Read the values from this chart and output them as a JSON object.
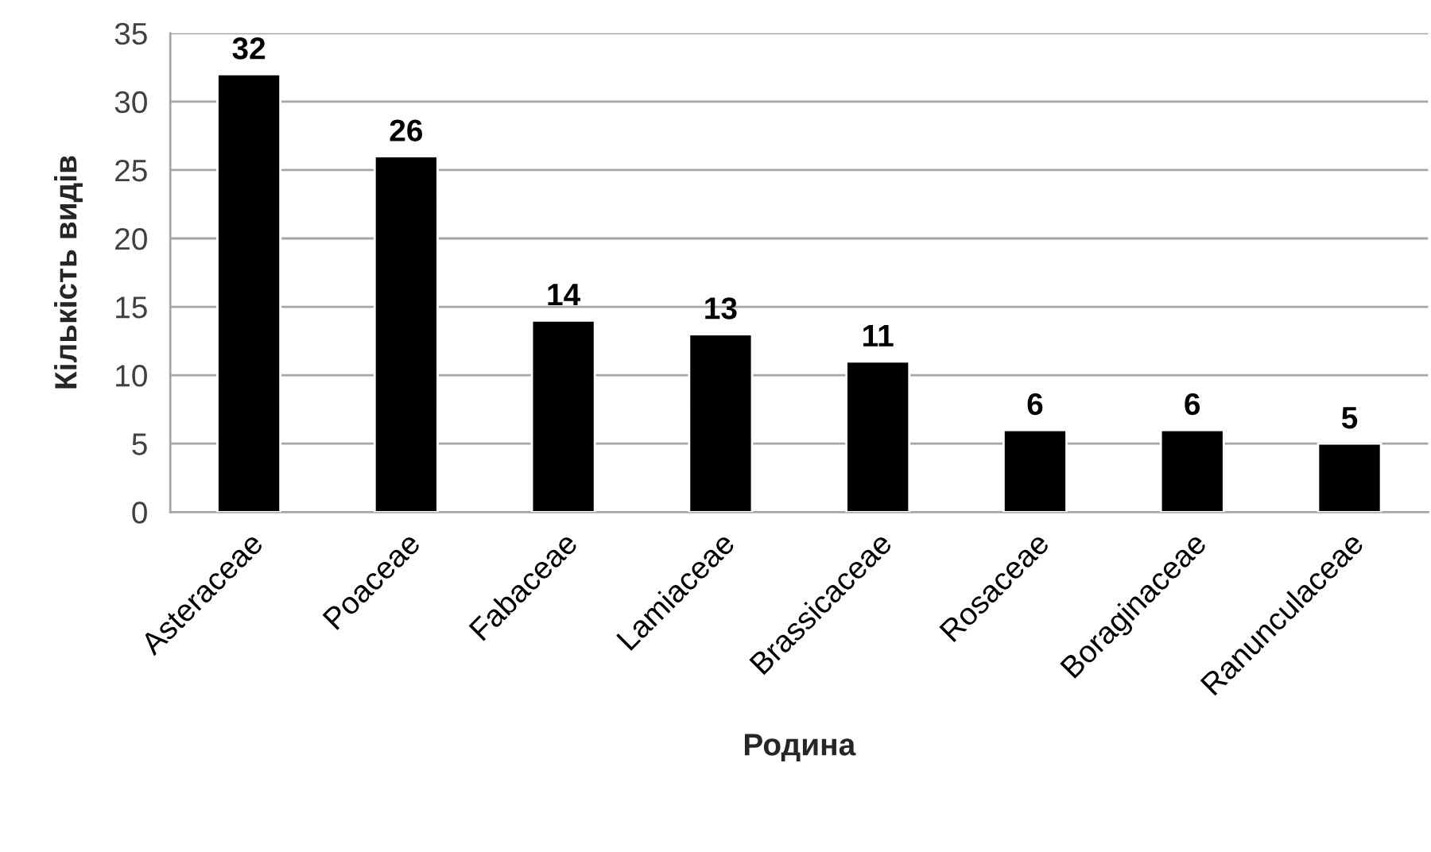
{
  "chart_data": {
    "type": "bar",
    "xlabel": "Родина",
    "ylabel": "Кількість видів",
    "categories": [
      "Asteraceae",
      "Poaceae",
      "Fabaceae",
      "Lamiaceae",
      "Brassicaceae",
      "Rosaceae",
      "Boraginaceae",
      "Ranunculaceae"
    ],
    "values": [
      32,
      26,
      14,
      13,
      11,
      6,
      6,
      5
    ],
    "color": "#000000",
    "ylim": [
      0,
      35
    ],
    "yticks": [
      0,
      5,
      10,
      15,
      20,
      25,
      30,
      35
    ],
    "grid": "y",
    "data_labels": true
  }
}
